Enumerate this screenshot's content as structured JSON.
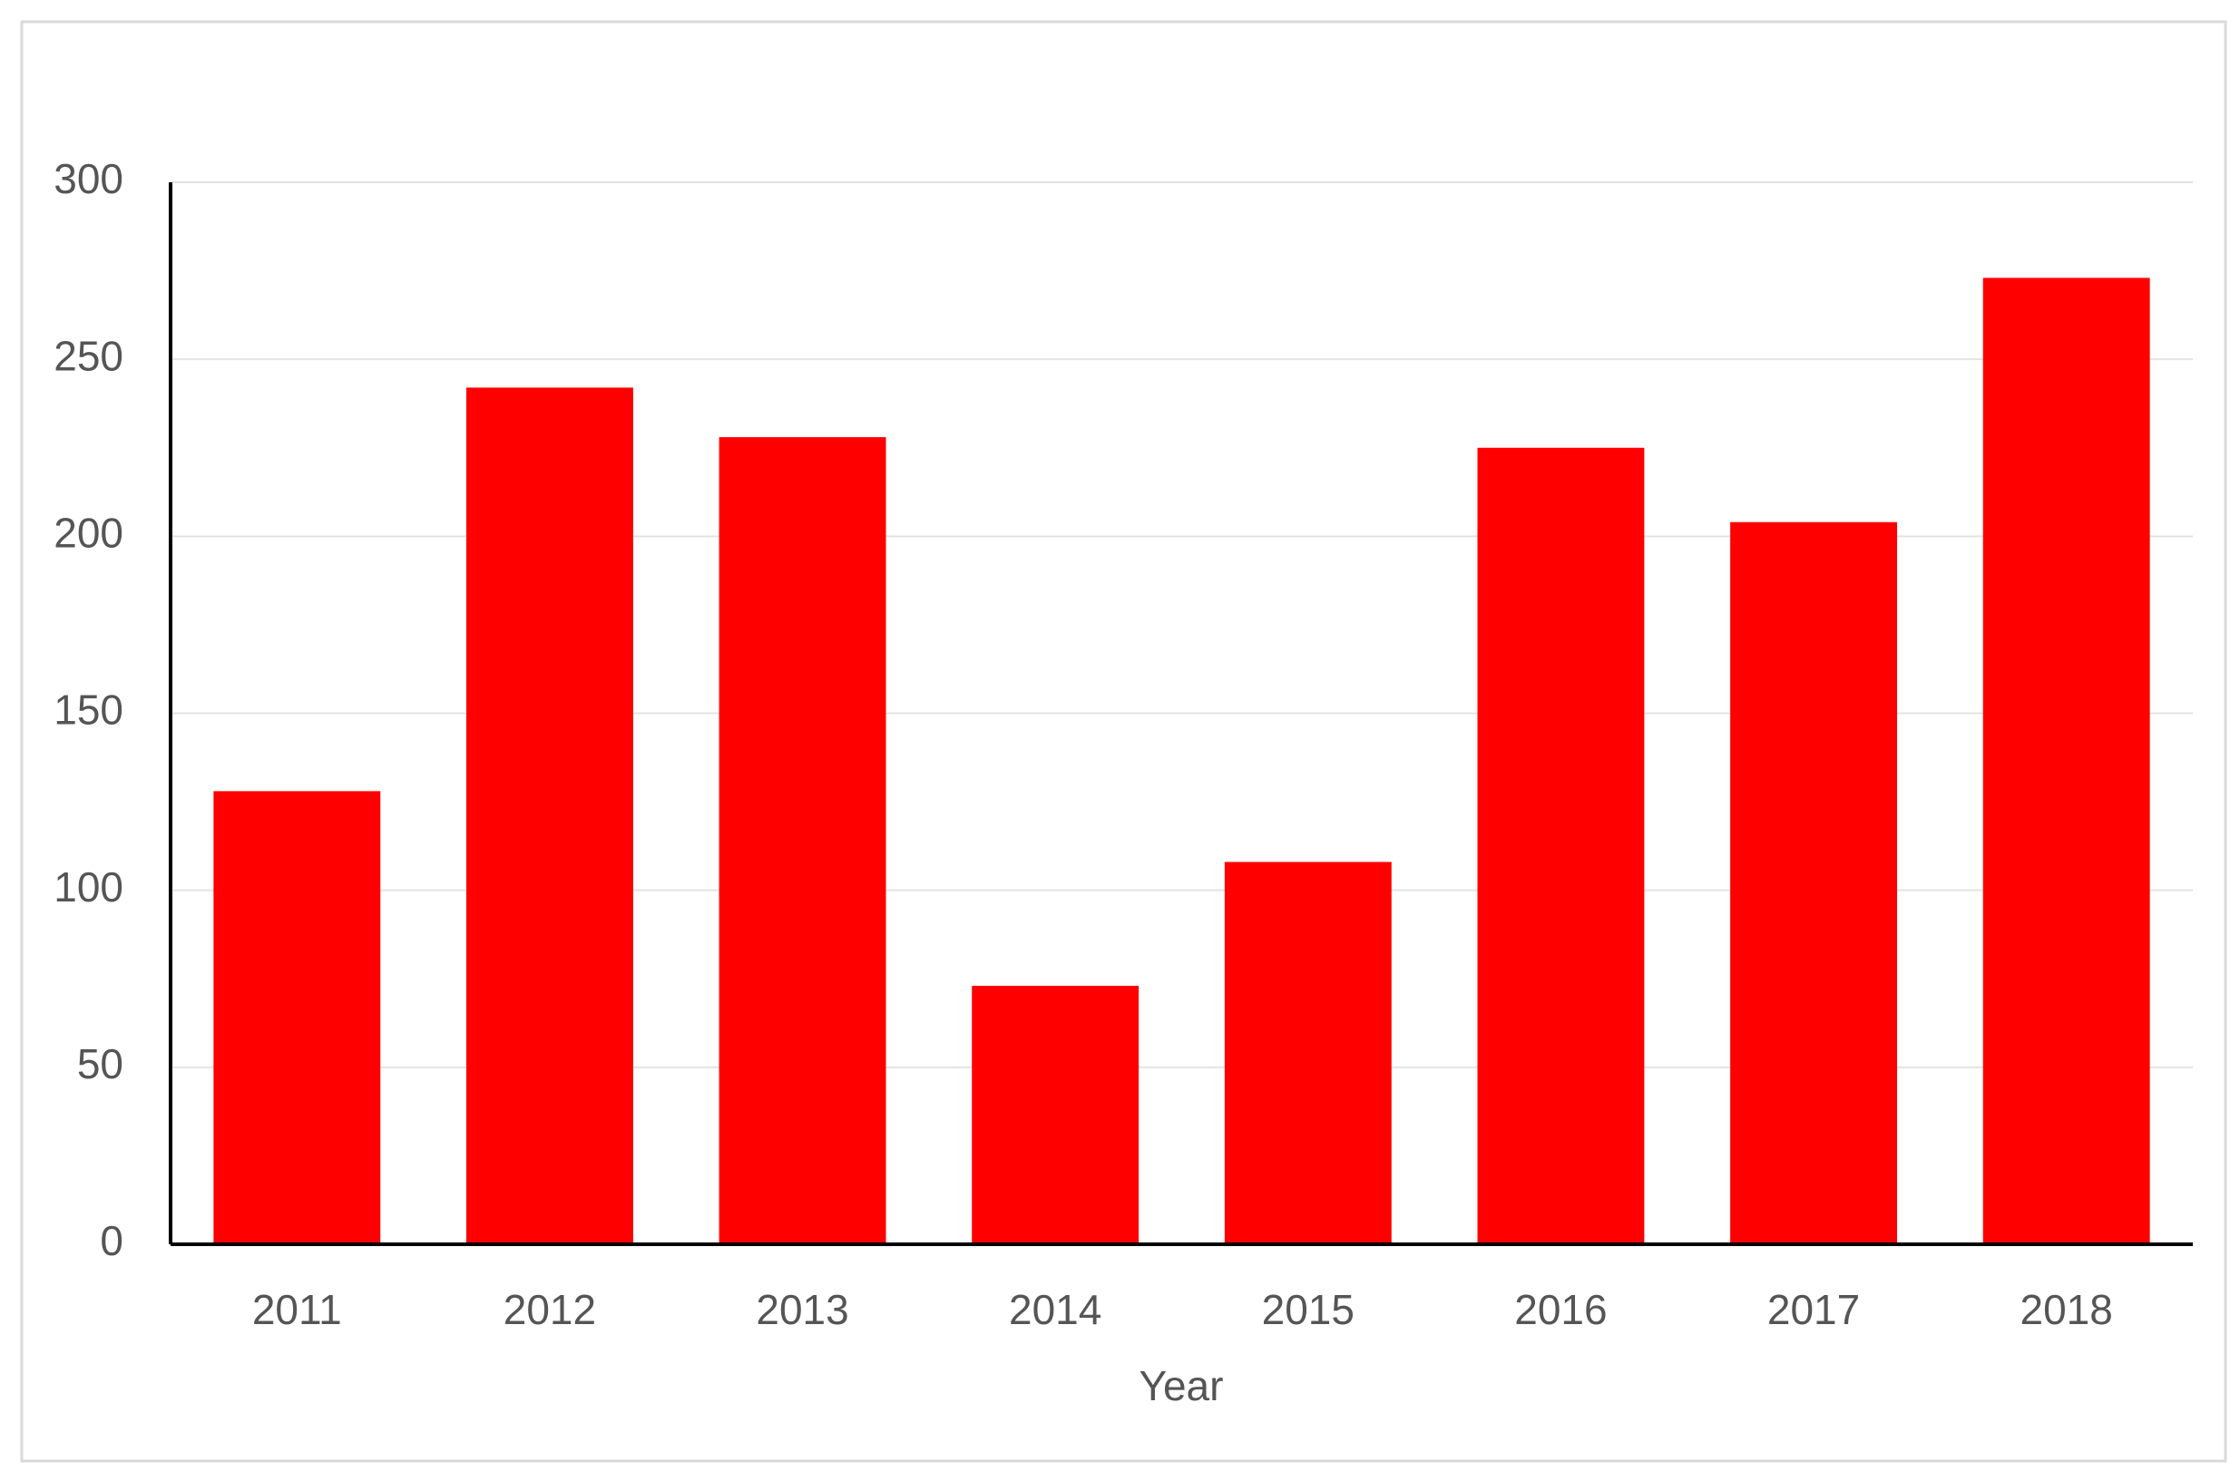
{
  "chart_data": {
    "type": "bar",
    "x_label": "Year",
    "categories": [
      "2011",
      "2012",
      "2013",
      "2014",
      "2015",
      "2016",
      "2017",
      "2018"
    ],
    "values": [
      128,
      242,
      228,
      73,
      108,
      225,
      204,
      273
    ],
    "color": "#ff0000",
    "ylim": [
      0,
      300
    ],
    "yticks": [
      0,
      50,
      100,
      150,
      200,
      250,
      300
    ],
    "grid": true
  }
}
